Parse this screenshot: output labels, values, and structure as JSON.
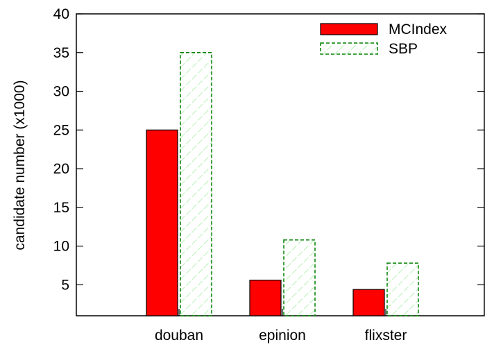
{
  "chart_data": {
    "type": "bar",
    "title": "",
    "xlabel": "",
    "ylabel": "candidate number (x1000)",
    "categories": [
      "douban",
      "epinion",
      "flixster"
    ],
    "series": [
      {
        "name": "MCIndex",
        "values": [
          25,
          5.6,
          4.4
        ],
        "color": "#ff0000",
        "style": "solid"
      },
      {
        "name": "SBP",
        "values": [
          35,
          10.8,
          7.8
        ],
        "color": "#008000",
        "style": "hatched"
      }
    ],
    "ylim": [
      1,
      40
    ],
    "yticks": [
      5,
      10,
      15,
      20,
      25,
      30,
      35,
      40
    ],
    "grid": false,
    "legend_position": "top-right"
  }
}
